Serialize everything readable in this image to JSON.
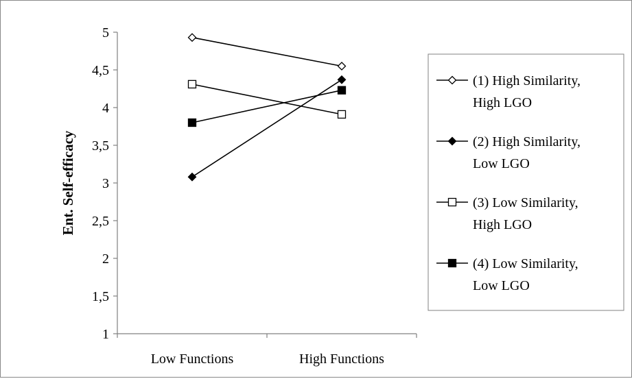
{
  "chart_data": {
    "type": "line",
    "title": "",
    "xlabel": "",
    "ylabel": "Ent. Self-efficacy",
    "categories": [
      "Low Functions",
      "High Functions"
    ],
    "ylim": [
      1,
      5
    ],
    "yticks": [
      "1",
      "1,5",
      "2",
      "2,5",
      "3",
      "3,5",
      "4",
      "4,5",
      "5"
    ],
    "ytick_values": [
      1,
      1.5,
      2,
      2.5,
      3,
      3.5,
      4,
      4.5,
      5
    ],
    "grid": false,
    "legend_position": "right",
    "series": [
      {
        "name_line1": "(1) High Similarity,",
        "name_line2": "High LGO",
        "values": [
          4.93,
          4.55
        ],
        "marker": "diamond-open",
        "color": "#000000"
      },
      {
        "name_line1": "(2) High Similarity,",
        "name_line2": "Low LGO",
        "values": [
          3.08,
          4.37
        ],
        "marker": "diamond-filled",
        "color": "#000000"
      },
      {
        "name_line1": "(3) Low Similarity,",
        "name_line2": "High LGO",
        "values": [
          4.31,
          3.91
        ],
        "marker": "square-open",
        "color": "#000000"
      },
      {
        "name_line1": "(4) Low Similarity,",
        "name_line2": "Low LGO",
        "values": [
          3.8,
          4.23
        ],
        "marker": "square-filled",
        "color": "#000000"
      }
    ]
  }
}
